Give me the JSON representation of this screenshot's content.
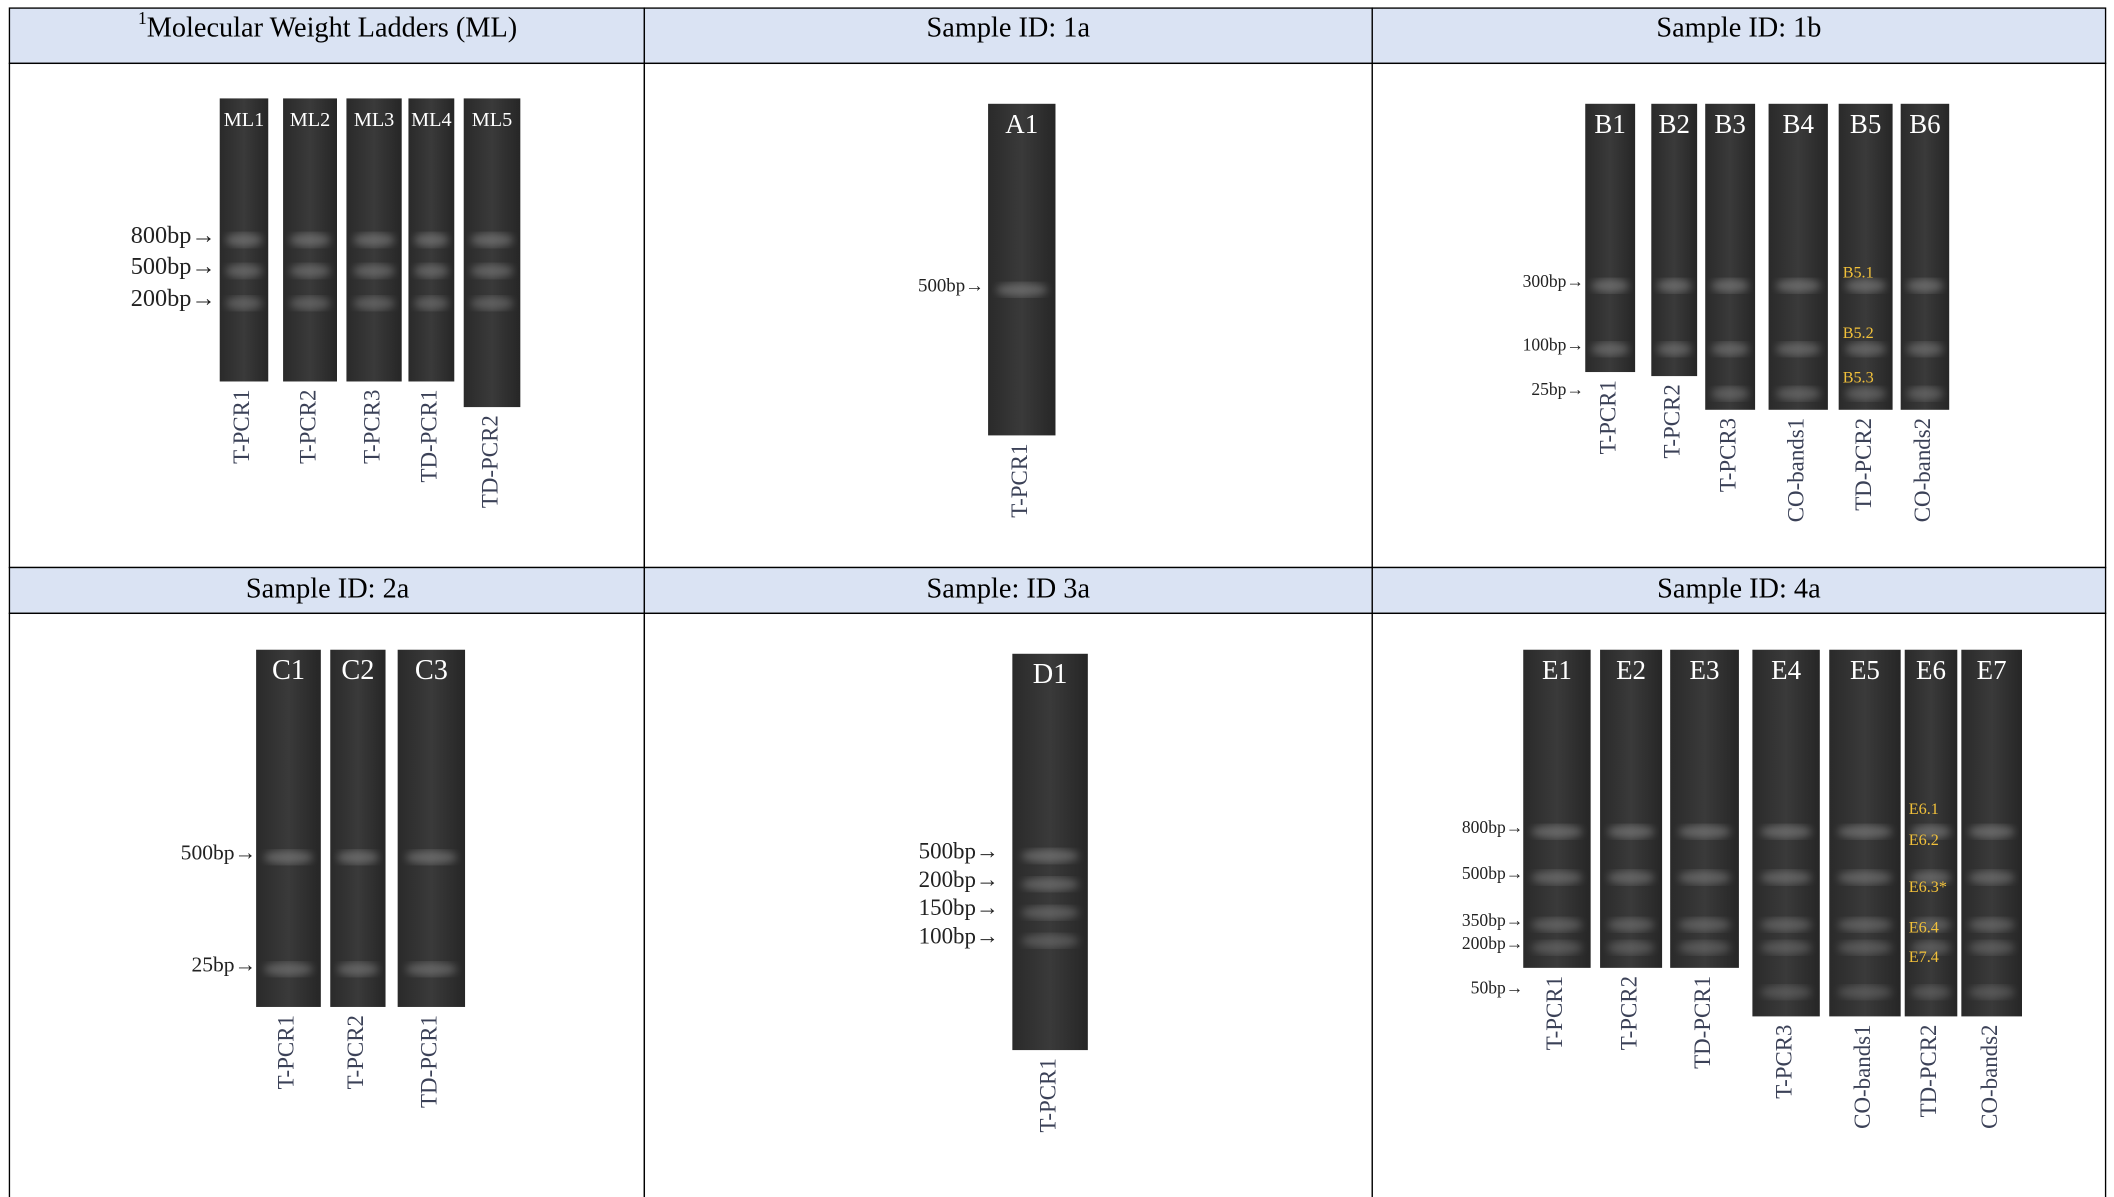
{
  "panels": [
    {
      "header": {
        "superscript": "1",
        "text": "Molecular Weight Ladders (ML)"
      },
      "lanes": [
        {
          "label": "ML1",
          "name": "T-PCR1"
        },
        {
          "label": "ML2",
          "name": "T-PCR2"
        },
        {
          "label": "ML3",
          "name": "T-PCR3"
        },
        {
          "label": "ML4",
          "name": "TD-PCR1"
        },
        {
          "label": "ML5",
          "name": "TD-PCR2"
        }
      ],
      "markers": [
        "800bp→",
        "500bp→",
        "200bp→"
      ],
      "annotations": []
    },
    {
      "header": {
        "text": "Sample ID: 1a"
      },
      "lanes": [
        {
          "label": "A1",
          "name": "T-PCR1"
        }
      ],
      "markers": [
        "500bp→"
      ],
      "annotations": []
    },
    {
      "header": {
        "text": "Sample ID: 1b"
      },
      "lanes": [
        {
          "label": "B1",
          "name": "T-PCR1"
        },
        {
          "label": "B2",
          "name": "T-PCR2"
        },
        {
          "label": "B3",
          "name": "T-PCR3"
        },
        {
          "label": "B4",
          "name": "CO-bands1"
        },
        {
          "label": "B5",
          "name": "TD-PCR2"
        },
        {
          "label": "B6",
          "name": "CO-bands2"
        }
      ],
      "markers": [
        "300bp→",
        "100bp→",
        "25bp→"
      ],
      "annotations": [
        "B5.1",
        "B5.2",
        "B5.3"
      ]
    },
    {
      "header": {
        "text": "Sample ID: 2a"
      },
      "lanes": [
        {
          "label": "C1",
          "name": "T-PCR1"
        },
        {
          "label": "C2",
          "name": "T-PCR2"
        },
        {
          "label": "C3",
          "name": "TD-PCR1"
        }
      ],
      "markers": [
        "500bp→",
        "25bp→"
      ],
      "annotations": []
    },
    {
      "header": {
        "text": "Sample: ID 3a"
      },
      "lanes": [
        {
          "label": "D1",
          "name": "T-PCR1"
        }
      ],
      "markers": [
        "500bp→",
        "200bp→",
        "150bp→",
        "100bp→"
      ],
      "annotations": []
    },
    {
      "header": {
        "text": "Sample ID: 4a"
      },
      "lanes": [
        {
          "label": "E1",
          "name": "T-PCR1"
        },
        {
          "label": "E2",
          "name": "T-PCR2"
        },
        {
          "label": "E3",
          "name": "TD-PCR1"
        },
        {
          "label": "E4",
          "name": "T-PCR3"
        },
        {
          "label": "E5",
          "name": "CO-bands1"
        },
        {
          "label": "E6",
          "name": "TD-PCR2"
        },
        {
          "label": "E7",
          "name": "CO-bands2"
        }
      ],
      "markers": [
        "800bp→",
        "500bp→",
        "350bp→",
        "200bp→",
        "50bp→"
      ],
      "annotations": [
        "E6.1",
        "E6.2",
        "E6.3*",
        "E6.4",
        "E7.4"
      ]
    }
  ]
}
